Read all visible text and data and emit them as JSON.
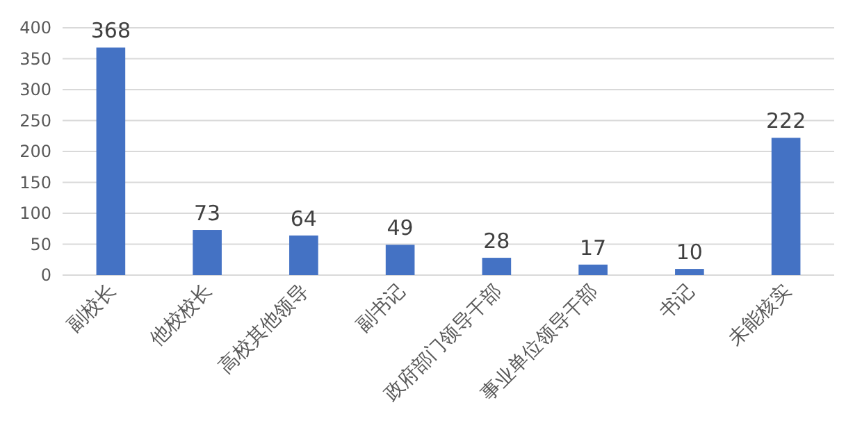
{
  "chart_data": {
    "type": "bar",
    "categories": [
      "副校长",
      "他校校长",
      "高校其他领导",
      "副书记",
      "政府部门领导干部",
      "事业单位领导干部",
      "书记",
      "未能核实"
    ],
    "values": [
      368,
      73,
      64,
      49,
      28,
      17,
      10,
      222
    ],
    "color": "#4472c4",
    "ylim": [
      0,
      400
    ],
    "yticks": [
      0,
      50,
      100,
      150,
      200,
      250,
      300,
      350,
      400
    ],
    "grid": "y",
    "data_labels": true
  }
}
